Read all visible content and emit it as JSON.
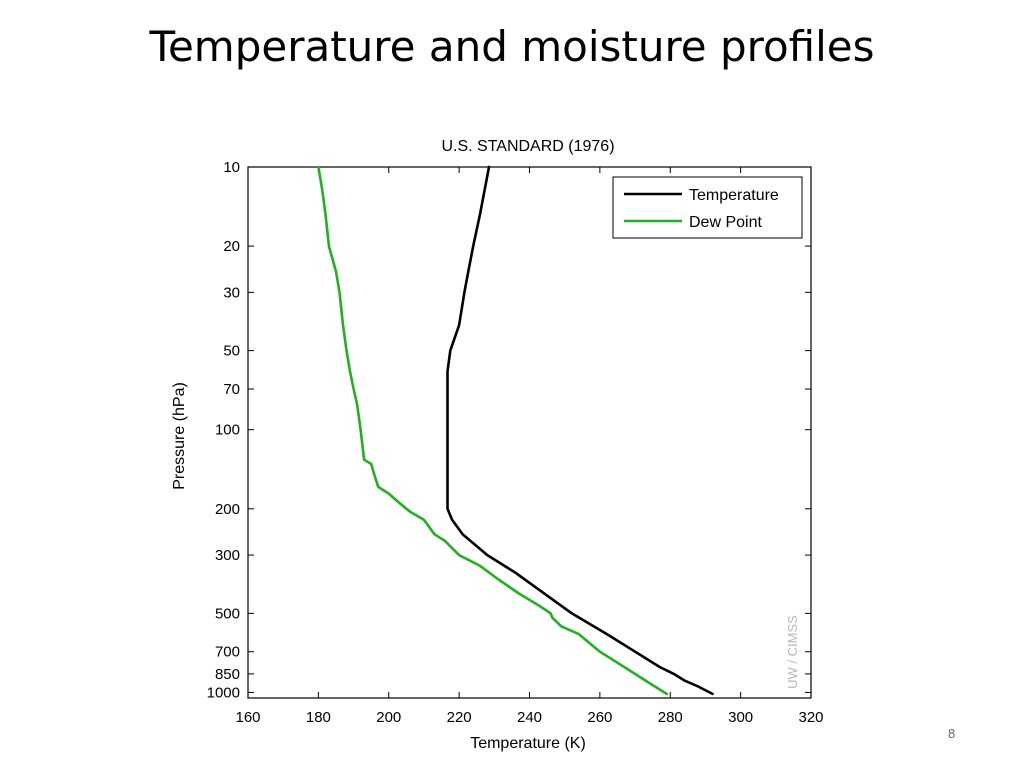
{
  "slide": {
    "title": "Temperature and moisture profiles",
    "page_number": "8"
  },
  "chart_data": {
    "type": "line",
    "title": "U.S. STANDARD (1976)",
    "xlabel": "Temperature (K)",
    "ylabel": "Pressure (hPa)",
    "xlim": [
      160,
      320
    ],
    "ylim": [
      1050,
      10
    ],
    "y_scale": "log",
    "y_reversed": true,
    "x_ticks": [
      160,
      180,
      200,
      220,
      240,
      260,
      280,
      300,
      320
    ],
    "y_ticks": [
      10,
      20,
      30,
      50,
      70,
      100,
      200,
      300,
      500,
      700,
      850,
      1000
    ],
    "grid": false,
    "legend_position": "top-right",
    "watermark": "UW / CIMSS",
    "colors": {
      "temperature": "#000000",
      "dew_point": "#22b022"
    },
    "series": [
      {
        "name": "Temperature",
        "color": "#000000",
        "points": [
          [
            228.5,
            10
          ],
          [
            226,
            15
          ],
          [
            224,
            20
          ],
          [
            222.6,
            25
          ],
          [
            221.5,
            30
          ],
          [
            220,
            40
          ],
          [
            217.5,
            50
          ],
          [
            216.7,
            60
          ],
          [
            216.7,
            100
          ],
          [
            216.7,
            150
          ],
          [
            216.7,
            200
          ],
          [
            218,
            220
          ],
          [
            221,
            250
          ],
          [
            228,
            300
          ],
          [
            236,
            350
          ],
          [
            242,
            400
          ],
          [
            252,
            500
          ],
          [
            262,
            600
          ],
          [
            270,
            700
          ],
          [
            277,
            800
          ],
          [
            281,
            850
          ],
          [
            284,
            900
          ],
          [
            288,
            950
          ],
          [
            292,
            1013
          ]
        ]
      },
      {
        "name": "Dew Point",
        "color": "#22b022",
        "points": [
          [
            180,
            10
          ],
          [
            181,
            12
          ],
          [
            182,
            15
          ],
          [
            183,
            20
          ],
          [
            185,
            25
          ],
          [
            186,
            30
          ],
          [
            187,
            40
          ],
          [
            188,
            50
          ],
          [
            189,
            60
          ],
          [
            190,
            70
          ],
          [
            191,
            80
          ],
          [
            192,
            100
          ],
          [
            193,
            130
          ],
          [
            195,
            135
          ],
          [
            196,
            150
          ],
          [
            197,
            165
          ],
          [
            200,
            175
          ],
          [
            203,
            190
          ],
          [
            206,
            205
          ],
          [
            210,
            220
          ],
          [
            213,
            250
          ],
          [
            216,
            265
          ],
          [
            220,
            300
          ],
          [
            226,
            330
          ],
          [
            231,
            370
          ],
          [
            237,
            420
          ],
          [
            243,
            470
          ],
          [
            246,
            500
          ],
          [
            246.5,
            520
          ],
          [
            249,
            560
          ],
          [
            254,
            600
          ],
          [
            260,
            700
          ],
          [
            270,
            850
          ],
          [
            274,
            920
          ],
          [
            279,
            1013
          ]
        ]
      }
    ]
  }
}
